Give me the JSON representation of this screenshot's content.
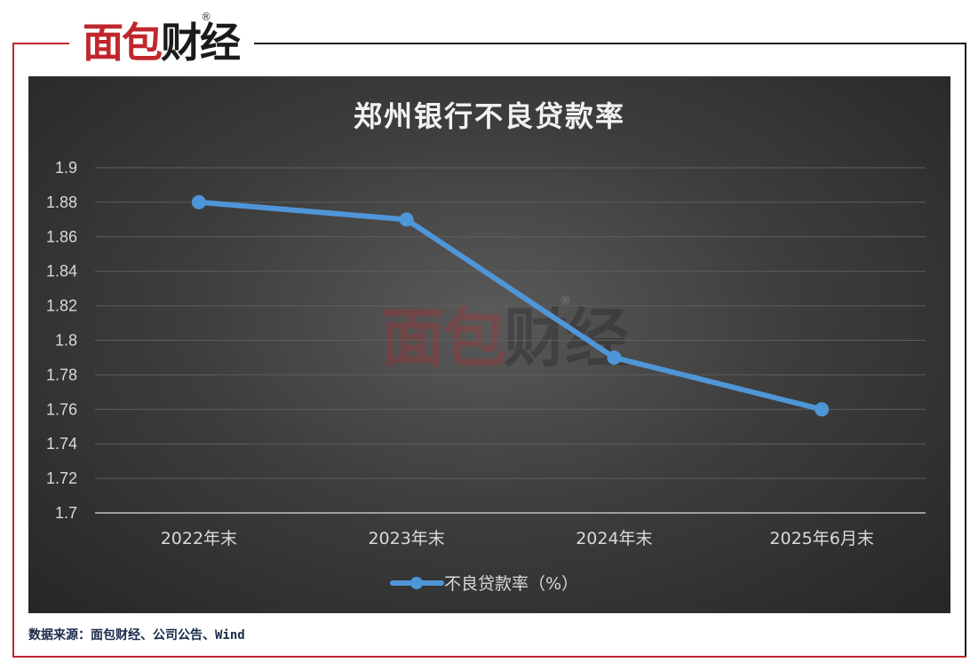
{
  "logo": {
    "brand_red": "面包",
    "brand_dark": "财经",
    "registered": "®"
  },
  "watermark": {
    "brand_red": "面包",
    "brand_dark": "财经",
    "registered": "®"
  },
  "source": "数据来源：面包财经、公司公告、Wind",
  "colors": {
    "line": "#4f96d8",
    "grid": "#5e5e5e",
    "axis": "#bfbfbf",
    "text": "#d9d9d9",
    "brand_red": "#c0272d"
  },
  "chart_data": {
    "type": "line",
    "title": "郑州银行不良贷款率",
    "categories": [
      "2022年末",
      "2023年末",
      "2024年末",
      "2025年6月末"
    ],
    "series": [
      {
        "name": "不良贷款率（%）",
        "values": [
          1.88,
          1.87,
          1.79,
          1.76
        ]
      }
    ],
    "ylim": [
      1.7,
      1.9
    ],
    "yticks": [
      "1.7",
      "1.72",
      "1.74",
      "1.76",
      "1.78",
      "1.8",
      "1.82",
      "1.84",
      "1.86",
      "1.88",
      "1.9"
    ],
    "grid": true,
    "legend": "bottom",
    "markers": true
  }
}
